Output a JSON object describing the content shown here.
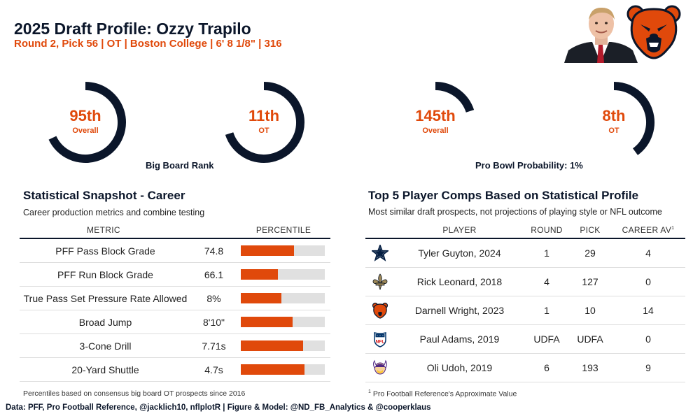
{
  "header": {
    "title": "2025 Draft Profile: Ozzy Trapilo",
    "subtitle": "Round 2, Pick 56 | OT | Boston College | 6' 8 1/8\" | 316"
  },
  "colors": {
    "navy": "#0b162a",
    "orange": "#e0490b",
    "track": "#e0e0e0"
  },
  "gauges": {
    "big_board": {
      "caption": "Big Board Rank",
      "overall": {
        "value": "95th",
        "label": "Overall",
        "fill_fraction": 0.68
      },
      "position": {
        "value": "11th",
        "label": "OT",
        "fill_fraction": 0.7
      }
    },
    "pro_bowl": {
      "caption": "Pro Bowl Probability: 1%",
      "overall": {
        "value": "145th",
        "label": "Overall",
        "fill_fraction": 0.2
      },
      "position": {
        "value": "8th",
        "label": "OT",
        "fill_fraction": 0.4
      }
    }
  },
  "snapshot": {
    "title": "Statistical Snapshot - Career",
    "subtitle": "Career production metrics and combine testing",
    "col_metric": "METRIC",
    "col_percentile": "PERCENTILE",
    "footnote": "Percentiles based on consensus big board OT prospects since 2016"
  },
  "comps": {
    "title": "Top 5 Player Comps Based on Statistical Profile",
    "subtitle": "Most similar draft prospects, not projections of playing style or NFL outcome",
    "col_player": "PLAYER",
    "col_round": "ROUND",
    "col_pick": "PICK",
    "col_av": "CAREER AV",
    "col_av_sup": "1",
    "footnote_sup": "1",
    "footnote": "Pro Football Reference's Approximate Value",
    "rows": [
      {
        "team_icon": "cowboys-star-icon",
        "player": "Tyler Guyton, 2024",
        "round": "1",
        "pick": "29",
        "av": "4"
      },
      {
        "team_icon": "saints-fleur-de-lis-icon",
        "player": "Rick Leonard, 2018",
        "round": "4",
        "pick": "127",
        "av": "0"
      },
      {
        "team_icon": "bears-logo-icon",
        "player": "Darnell Wright, 2023",
        "round": "1",
        "pick": "10",
        "av": "14"
      },
      {
        "team_icon": "nfl-shield-icon",
        "player": "Paul Adams, 2019",
        "round": "UDFA",
        "pick": "UDFA",
        "av": "0"
      },
      {
        "team_icon": "vikings-horn-icon",
        "player": "Oli Udoh, 2019",
        "round": "6",
        "pick": "193",
        "av": "9"
      }
    ]
  },
  "chart_data": {
    "type": "bar",
    "categories": [
      "PFF Pass Block Grade",
      "PFF Run Block Grade",
      "True Pass Set Pressure Rate Allowed",
      "Broad Jump",
      "3-Cone Drill",
      "20-Yard Shuttle"
    ],
    "display_values": [
      "74.8",
      "66.1",
      "8%",
      "8'10\"",
      "7.71s",
      "4.7s"
    ],
    "values": [
      63,
      44,
      48,
      62,
      74,
      76
    ],
    "xlim": [
      0,
      100
    ],
    "xlabel": "PERCENTILE"
  },
  "source": "Data: PFF, Pro Football Reference, @jacklich10, nflplotR | Figure & Model: @ND_FB_Analytics & @cooperklaus"
}
